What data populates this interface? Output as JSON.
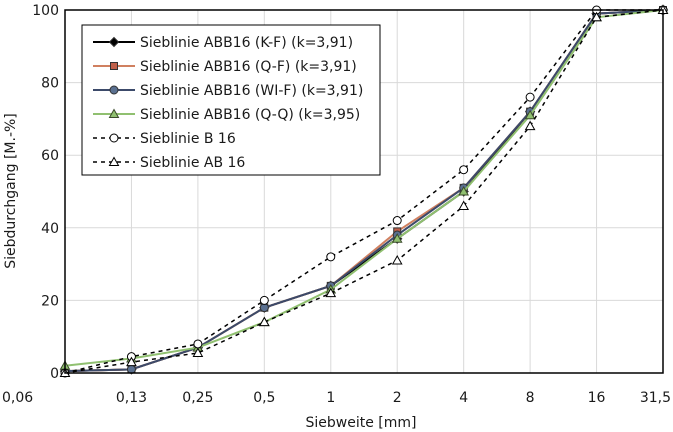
{
  "chart_data": {
    "type": "line",
    "title": "",
    "xlabel": "Siebweite [mm]",
    "ylabel": "Siebdurchgang [M.-%]",
    "categories": [
      "0,06",
      "0,13",
      "0,25",
      "0,5",
      "1",
      "2",
      "4",
      "8",
      "16",
      "31,5"
    ],
    "ylim": [
      0,
      100
    ],
    "yticks": [
      0,
      20,
      40,
      60,
      80,
      100
    ],
    "grid": true,
    "legend_position": "top-left",
    "series": [
      {
        "name": "Sieblinie ABB16 (K-F)  (k=3,91)",
        "values": [
          0.5,
          1,
          7,
          18,
          24,
          37,
          50,
          72,
          99,
          100
        ],
        "color": "#000000",
        "marker": "diamond",
        "marker_fill": "#000000",
        "dash": "solid"
      },
      {
        "name": "Sieblinie ABB16 (Q-F)  (k=3,91)",
        "values": [
          0.5,
          1,
          7,
          18,
          24,
          39,
          51,
          72,
          99,
          100
        ],
        "color": "#d08060",
        "marker": "square",
        "marker_fill": "#c0604a",
        "dash": "solid"
      },
      {
        "name": "Sieblinie ABB16 (WI-F)  (k=3,91)",
        "values": [
          0.5,
          1,
          7,
          18,
          24,
          38,
          51,
          72,
          99,
          100
        ],
        "color": "#3c4a6a",
        "marker": "circle",
        "marker_fill": "#5a7090",
        "dash": "solid"
      },
      {
        "name": "Sieblinie ABB16 (Q-Q)  (k=3,95)",
        "values": [
          2,
          4,
          7,
          14,
          23,
          37,
          50,
          71,
          98,
          100
        ],
        "color": "#90c070",
        "marker": "triangle",
        "marker_fill": "#90c070",
        "dash": "solid"
      },
      {
        "name": "Sieblinie B 16",
        "values": [
          0,
          4.5,
          8,
          20,
          32,
          42,
          56,
          76,
          100,
          100
        ],
        "color": "#000000",
        "marker": "circle",
        "marker_fill": "#ffffff",
        "dash": "dashed"
      },
      {
        "name": "Sieblinie AB 16",
        "values": [
          0,
          3,
          5.5,
          14,
          22,
          31,
          46,
          68,
          98,
          100
        ],
        "color": "#000000",
        "marker": "triangle",
        "marker_fill": "#ffffff",
        "dash": "dashed"
      }
    ]
  }
}
